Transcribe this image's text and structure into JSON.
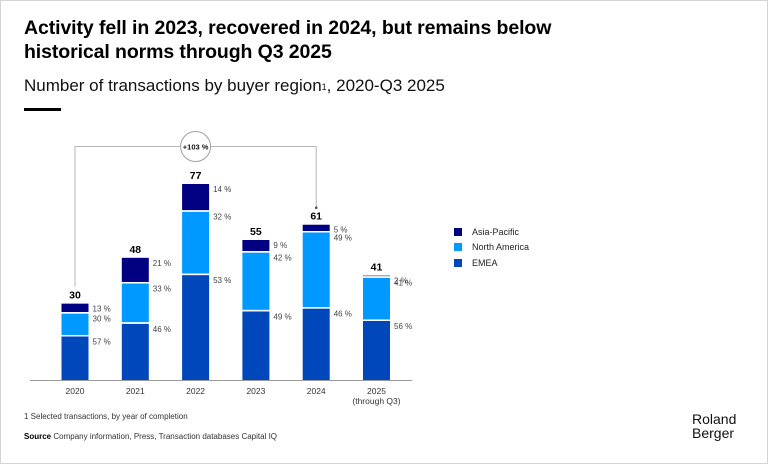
{
  "header": {
    "title": "Activity fell in 2023, recovered in 2024, but remains below historical norms through Q3 2025",
    "subtitle": "Number of transactions by buyer region",
    "subtitle_sup": "1",
    "subtitle_suffix": ", 2020-Q3 2025"
  },
  "chart_data": {
    "type": "bar",
    "stacked": true,
    "title": "Number of transactions by buyer region, 2020-Q3 2025",
    "xlabel": "",
    "ylabel": "",
    "categories": [
      "2020",
      "2021",
      "2022",
      "2023",
      "2024",
      "2025\n(through Q3)"
    ],
    "category_labels": [
      [
        "2020"
      ],
      [
        "2021"
      ],
      [
        "2022"
      ],
      [
        "2023"
      ],
      [
        "2024"
      ],
      [
        "2025",
        "(through Q3)"
      ]
    ],
    "totals": [
      30,
      48,
      77,
      55,
      61,
      41
    ],
    "series": [
      {
        "name": "EMEA",
        "color": "#0047bb",
        "share_pct": [
          57,
          46,
          53,
          49,
          46,
          56
        ]
      },
      {
        "name": "North America",
        "color": "#0099ff",
        "share_pct": [
          30,
          33,
          32,
          42,
          49,
          41
        ]
      },
      {
        "name": "Asia-Pacific",
        "color": "#000080",
        "share_pct": [
          13,
          21,
          14,
          9,
          5,
          2
        ]
      }
    ],
    "legend_order": [
      "Asia-Pacific",
      "North America",
      "EMEA"
    ],
    "legend_position": "right",
    "pct_suffix": "%",
    "ylim": [
      0,
      80
    ],
    "grid": false,
    "annotation": {
      "label": "+103 %",
      "from_category": "2020",
      "to_category": "2024"
    }
  },
  "footer": {
    "footnote": "1 Selected transactions, by year of completion",
    "source_label": "Source",
    "source_text": "Company information, Press, Transaction databases Capital IQ",
    "logo_line1": "Roland",
    "logo_line2": "Berger"
  }
}
